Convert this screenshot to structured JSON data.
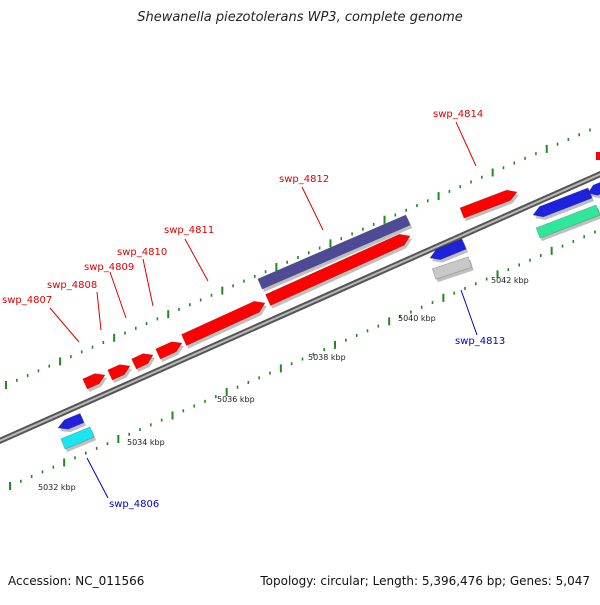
{
  "title": "Shewanella piezotolerans WP3, complete genome",
  "footer": {
    "accession": "Accession: NC_011566",
    "topology": "Topology: circular; Length: 5,396,476 bp; Genes: 5,047"
  },
  "colors": {
    "backbone": "#8a8a8a",
    "tick": "#1f8a1f",
    "forward_gene": "#ff0000",
    "reverse_gene": "#0000ff",
    "forward_label": "#e00000",
    "reverse_label": "#0000cc",
    "scale_label": "#222222"
  },
  "scale_labels": [
    "5032 kbp",
    "5034 kbp",
    "5036 kbp",
    "5038 kbp",
    "5040 kbp",
    "5042 kbp"
  ],
  "genes": [
    {
      "label": "swp_4806",
      "strand": "reverse"
    },
    {
      "label": "swp_4807",
      "strand": "forward"
    },
    {
      "label": "swp_4808",
      "strand": "forward"
    },
    {
      "label": "swp_4809",
      "strand": "forward"
    },
    {
      "label": "swp_4810",
      "strand": "forward"
    },
    {
      "label": "swp_4811",
      "strand": "forward"
    },
    {
      "label": "swp_4812",
      "strand": "forward"
    },
    {
      "label": "swp_4813",
      "strand": "reverse"
    },
    {
      "label": "swp_4814",
      "strand": "forward"
    }
  ]
}
